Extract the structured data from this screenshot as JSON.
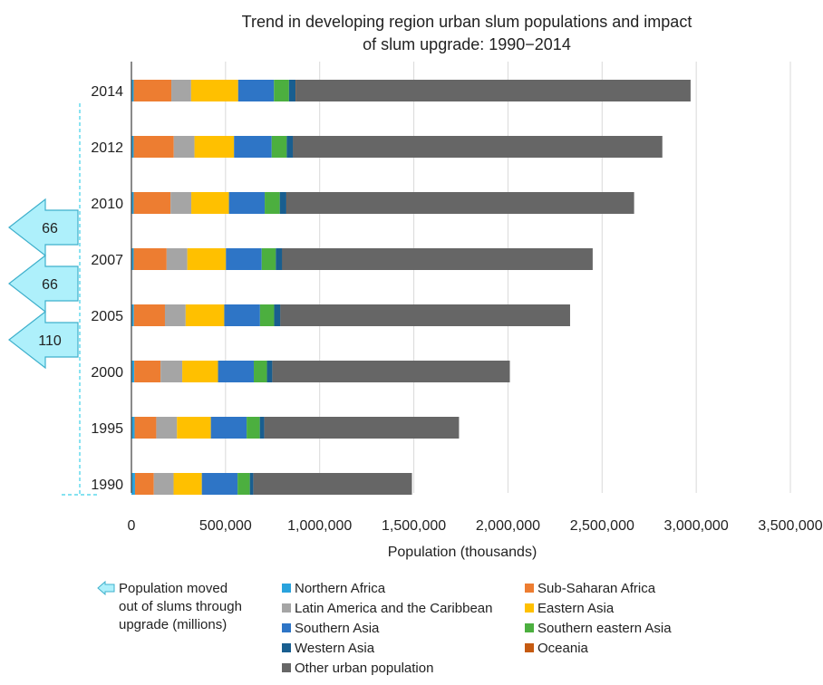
{
  "chart_data": {
    "type": "bar",
    "orientation": "horizontal",
    "stacked": true,
    "title_line1": "Trend in developing region urban slum populations and impact",
    "title_line2": "of slum upgrade: 1990−2014",
    "xlabel": "Population (thousands)",
    "xlim": [
      0,
      3500000
    ],
    "xticks": [
      0,
      500000,
      1000000,
      1500000,
      2000000,
      2500000,
      3000000,
      3500000
    ],
    "xtick_labels": [
      "0",
      "500,000",
      "1,000,000",
      "1,500,000",
      "2,000,000",
      "2,500,000",
      "3,000,000",
      "3,500,000"
    ],
    "grid": true,
    "legend_position": "bottom",
    "categories": [
      "2014",
      "2012",
      "2010",
      "2007",
      "2005",
      "2000",
      "1995",
      "1990"
    ],
    "series": [
      {
        "name": "Northern Africa",
        "color": "#29a3dd",
        "values": [
          12000,
          12000,
          12000,
          12000,
          13000,
          15000,
          17000,
          19000
        ]
      },
      {
        "name": "Sub-Saharan Africa",
        "color": "#ed7d31",
        "values": [
          200000,
          213000,
          196000,
          175000,
          165000,
          140000,
          115000,
          100000
        ]
      },
      {
        "name": "Latin America and the Caribbean",
        "color": "#a5a5a5",
        "values": [
          105000,
          110000,
          110000,
          110000,
          110000,
          115000,
          110000,
          105000
        ]
      },
      {
        "name": "Eastern Asia",
        "color": "#ffc000",
        "values": [
          250000,
          210000,
          200000,
          205000,
          205000,
          190000,
          180000,
          150000
        ]
      },
      {
        "name": "Southern Asia",
        "color": "#2e75c6",
        "values": [
          190000,
          200000,
          190000,
          190000,
          190000,
          190000,
          190000,
          190000
        ]
      },
      {
        "name": "Southern eastern Asia",
        "color": "#4caf3f",
        "values": [
          80000,
          80000,
          80000,
          75000,
          75000,
          70000,
          70000,
          65000
        ]
      },
      {
        "name": "Western Asia",
        "color": "#195e8f",
        "values": [
          35000,
          35000,
          35000,
          35000,
          35000,
          30000,
          25000,
          20000
        ]
      },
      {
        "name": "Oceania",
        "color": "#c55a11",
        "values": [
          1000,
          1000,
          1000,
          1000,
          1000,
          1000,
          1000,
          1000
        ]
      },
      {
        "name": "Other urban population",
        "color": "#666666",
        "values": [
          2097000,
          1959000,
          1846000,
          1647000,
          1536000,
          1259000,
          1032000,
          840000
        ]
      }
    ],
    "annotations": [
      {
        "label": "66",
        "from": "2007",
        "to": "2010"
      },
      {
        "label": "66",
        "from": "2005",
        "to": "2007"
      },
      {
        "label": "110",
        "from": "2000",
        "to": "2005"
      }
    ],
    "arrow_legend_label": [
      "Population moved",
      "out of slums through",
      "upgrade (millions)"
    ]
  }
}
